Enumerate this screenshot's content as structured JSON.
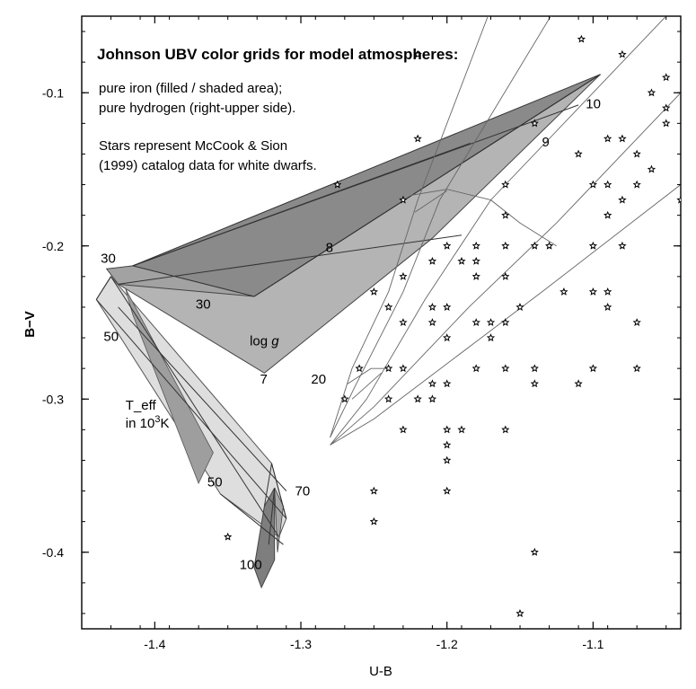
{
  "chart_data": {
    "type": "scatter",
    "title": "Johnson UBV color grids for model atmospheres:",
    "notes": [
      "pure iron (filled / shaded area);",
      "pure hydrogen (right-upper side).",
      "Stars represent McCook & Sion",
      "(1999) catalog data for white dwarfs."
    ],
    "xlabel": "U-B",
    "ylabel": "B−V",
    "xlim": [
      -1.45,
      -1.04
    ],
    "ylim": [
      -0.45,
      -0.05
    ],
    "y_inverted": true,
    "grid": false,
    "xticks": [
      -1.4,
      -1.3,
      -1.2,
      -1.1
    ],
    "xtick_labels": [
      "-1.4",
      "-1.3",
      "-1.2",
      "-1.1"
    ],
    "yticks": [
      -0.1,
      -0.2,
      -0.3,
      -0.4
    ],
    "ytick_labels": [
      "-0.1",
      "-0.2",
      "-0.3",
      "-0.4"
    ],
    "grid_labels": [
      {
        "text": "30",
        "x": -1.437,
        "y": -0.211
      },
      {
        "text": "30",
        "x": -1.372,
        "y": -0.241
      },
      {
        "text": "8",
        "x": -1.283,
        "y": -0.204
      },
      {
        "text": "log",
        "italic_suffix": "g",
        "x": -1.335,
        "y": -0.265
      },
      {
        "text": "7",
        "x": -1.328,
        "y": -0.29
      },
      {
        "text": "20",
        "x": -1.293,
        "y": -0.29
      },
      {
        "text": "50",
        "x": -1.435,
        "y": -0.262
      },
      {
        "text": "9",
        "x": -1.135,
        "y": -0.135
      },
      {
        "text": "10",
        "x": -1.105,
        "y": -0.11
      },
      {
        "text": "50",
        "x": -1.364,
        "y": -0.357
      },
      {
        "text": "70",
        "x": -1.304,
        "y": -0.363
      },
      {
        "text": "100",
        "x": -1.342,
        "y": -0.411
      }
    ],
    "teff_label": {
      "prefix": "T_eff",
      "line2_prefix": "in 10",
      "line2_sup": "3",
      "line2_suffix": "K",
      "x": -1.42,
      "y": -0.307
    },
    "iron_dark_region": [
      [
        -1.415,
        -0.213
      ],
      [
        -1.095,
        -0.088
      ],
      [
        -1.332,
        -0.233
      ]
    ],
    "iron_top_region": [
      [
        -1.415,
        -0.213
      ],
      [
        -1.433,
        -0.215
      ],
      [
        -1.425,
        -0.225
      ],
      [
        -1.332,
        -0.233
      ],
      [
        -1.095,
        -0.088
      ],
      [
        -1.184,
        -0.133
      ]
    ],
    "iron_upper_region": [
      [
        -1.415,
        -0.213
      ],
      [
        -1.332,
        -0.233
      ],
      [
        -1.095,
        -0.088
      ],
      [
        -1.21,
        -0.195
      ],
      [
        -1.325,
        -0.283
      ],
      [
        -1.425,
        -0.225
      ]
    ],
    "iron_lower_region": [
      [
        -1.44,
        -0.235
      ],
      [
        -1.43,
        -0.22
      ],
      [
        -1.32,
        -0.342
      ],
      [
        -1.31,
        -0.378
      ],
      [
        -1.315,
        -0.39
      ],
      [
        -1.355,
        -0.362
      ]
    ],
    "iron_lower_shade": [
      [
        -1.415,
        -0.245
      ],
      [
        -1.42,
        -0.228
      ],
      [
        -1.36,
        -0.335
      ],
      [
        -1.37,
        -0.355
      ]
    ],
    "iron_tail": [
      [
        -1.325,
        -0.37
      ],
      [
        -1.318,
        -0.358
      ],
      [
        -1.318,
        -0.405
      ],
      [
        -1.327,
        -0.423
      ],
      [
        -1.332,
        -0.41
      ]
    ],
    "iron_tail_inner": [
      [
        -1.318,
        -0.358
      ],
      [
        -1.312,
        -0.37
      ],
      [
        -1.316,
        -0.4
      ]
    ],
    "iron_lines": [
      [
        [
          -1.415,
          -0.213
        ],
        [
          -1.184,
          -0.133
        ]
      ],
      [
        [
          -1.425,
          -0.225
        ],
        [
          -1.19,
          -0.193
        ]
      ],
      [
        [
          -1.332,
          -0.233
        ],
        [
          -1.095,
          -0.088
        ]
      ],
      [
        [
          -1.415,
          -0.213
        ],
        [
          -1.11,
          -0.108
        ]
      ],
      [
        [
          -1.43,
          -0.22
        ],
        [
          -1.315,
          -0.39
        ]
      ],
      [
        [
          -1.44,
          -0.235
        ],
        [
          -1.31,
          -0.378
        ]
      ],
      [
        [
          -1.43,
          -0.22
        ],
        [
          -1.44,
          -0.235
        ]
      ],
      [
        [
          -1.425,
          -0.24
        ],
        [
          -1.31,
          -0.36
        ]
      ],
      [
        [
          -1.32,
          -0.342
        ],
        [
          -1.31,
          -0.378
        ]
      ],
      [
        [
          -1.32,
          -0.342
        ],
        [
          -1.325,
          -0.37
        ]
      ],
      [
        [
          -1.318,
          -0.358
        ],
        [
          -1.322,
          -0.395
        ]
      ],
      [
        [
          -1.355,
          -0.362
        ],
        [
          -1.312,
          -0.395
        ]
      ]
    ],
    "hydrogen_lines": [
      [
        [
          -1.28,
          -0.325
        ],
        [
          -1.265,
          -0.28
        ],
        [
          -1.24,
          -0.23
        ],
        [
          -1.22,
          -0.17
        ],
        [
          -1.16,
          -0.02
        ]
      ],
      [
        [
          -1.28,
          -0.325
        ],
        [
          -1.262,
          -0.29
        ],
        [
          -1.23,
          -0.23
        ],
        [
          -1.205,
          -0.17
        ],
        [
          -1.11,
          -0.02
        ]
      ],
      [
        [
          -1.28,
          -0.33
        ],
        [
          -1.255,
          -0.3
        ],
        [
          -1.215,
          -0.235
        ],
        [
          -1.17,
          -0.17
        ],
        [
          -1.04,
          -0.04
        ]
      ],
      [
        [
          -1.28,
          -0.33
        ],
        [
          -1.25,
          -0.305
        ],
        [
          -1.185,
          -0.24
        ],
        [
          -1.125,
          -0.185
        ],
        [
          -1.04,
          -0.1
        ]
      ],
      [
        [
          -1.28,
          -0.33
        ],
        [
          -1.25,
          -0.313
        ],
        [
          -1.135,
          -0.23
        ],
        [
          -1.04,
          -0.16
        ]
      ],
      [
        [
          -1.268,
          -0.29
        ],
        [
          -1.252,
          -0.28
        ],
        [
          -1.24,
          -0.28
        ]
      ],
      [
        [
          -1.265,
          -0.3
        ],
        [
          -1.245,
          -0.283
        ]
      ],
      [
        [
          -1.225,
          -0.167
        ],
        [
          -1.2,
          -0.163
        ],
        [
          -1.17,
          -0.17
        ],
        [
          -1.15,
          -0.185
        ],
        [
          -1.125,
          -0.2
        ]
      ],
      [
        [
          -1.222,
          -0.178
        ],
        [
          -1.2,
          -0.164
        ]
      ]
    ],
    "stars": [
      [
        -1.22,
        -0.075
      ],
      [
        -1.108,
        -0.065
      ],
      [
        -1.08,
        -0.075
      ],
      [
        -1.05,
        -0.09
      ],
      [
        -1.05,
        -0.11
      ],
      [
        -1.05,
        -0.12
      ],
      [
        -1.06,
        -0.1
      ],
      [
        -1.14,
        -0.12
      ],
      [
        -1.22,
        -0.13
      ],
      [
        -1.11,
        -0.14
      ],
      [
        -1.08,
        -0.13
      ],
      [
        -1.09,
        -0.13
      ],
      [
        -1.07,
        -0.14
      ],
      [
        -1.06,
        -0.15
      ],
      [
        -1.275,
        -0.16
      ],
      [
        -1.23,
        -0.17
      ],
      [
        -1.16,
        -0.16
      ],
      [
        -1.1,
        -0.16
      ],
      [
        -1.09,
        -0.16
      ],
      [
        -1.07,
        -0.16
      ],
      [
        -1.08,
        -0.17
      ],
      [
        -1.09,
        -0.18
      ],
      [
        -1.04,
        -0.17
      ],
      [
        -1.16,
        -0.18
      ],
      [
        -1.2,
        -0.2
      ],
      [
        -1.18,
        -0.2
      ],
      [
        -1.16,
        -0.2
      ],
      [
        -1.14,
        -0.2
      ],
      [
        -1.13,
        -0.2
      ],
      [
        -1.1,
        -0.2
      ],
      [
        -1.08,
        -0.2
      ],
      [
        -1.21,
        -0.21
      ],
      [
        -1.23,
        -0.22
      ],
      [
        -1.19,
        -0.21
      ],
      [
        -1.18,
        -0.21
      ],
      [
        -1.18,
        -0.22
      ],
      [
        -1.16,
        -0.22
      ],
      [
        -1.25,
        -0.23
      ],
      [
        -1.24,
        -0.24
      ],
      [
        -1.21,
        -0.24
      ],
      [
        -1.2,
        -0.24
      ],
      [
        -1.12,
        -0.23
      ],
      [
        -1.1,
        -0.23
      ],
      [
        -1.09,
        -0.23
      ],
      [
        -1.09,
        -0.24
      ],
      [
        -1.23,
        -0.25
      ],
      [
        -1.21,
        -0.25
      ],
      [
        -1.18,
        -0.25
      ],
      [
        -1.17,
        -0.25
      ],
      [
        -1.16,
        -0.25
      ],
      [
        -1.15,
        -0.24
      ],
      [
        -1.07,
        -0.25
      ],
      [
        -1.2,
        -0.26
      ],
      [
        -1.17,
        -0.26
      ],
      [
        -1.26,
        -0.28
      ],
      [
        -1.24,
        -0.28
      ],
      [
        -1.23,
        -0.28
      ],
      [
        -1.18,
        -0.28
      ],
      [
        -1.16,
        -0.28
      ],
      [
        -1.14,
        -0.28
      ],
      [
        -1.14,
        -0.29
      ],
      [
        -1.1,
        -0.28
      ],
      [
        -1.07,
        -0.28
      ],
      [
        -1.27,
        -0.3
      ],
      [
        -1.24,
        -0.3
      ],
      [
        -1.22,
        -0.3
      ],
      [
        -1.21,
        -0.29
      ],
      [
        -1.21,
        -0.3
      ],
      [
        -1.2,
        -0.29
      ],
      [
        -1.11,
        -0.29
      ],
      [
        -1.23,
        -0.32
      ],
      [
        -1.2,
        -0.32
      ],
      [
        -1.19,
        -0.32
      ],
      [
        -1.16,
        -0.32
      ],
      [
        -1.2,
        -0.33
      ],
      [
        -1.2,
        -0.34
      ],
      [
        -1.25,
        -0.36
      ],
      [
        -1.2,
        -0.36
      ],
      [
        -1.25,
        -0.38
      ],
      [
        -1.35,
        -0.39
      ],
      [
        -1.14,
        -0.4
      ],
      [
        -1.15,
        -0.44
      ]
    ]
  }
}
